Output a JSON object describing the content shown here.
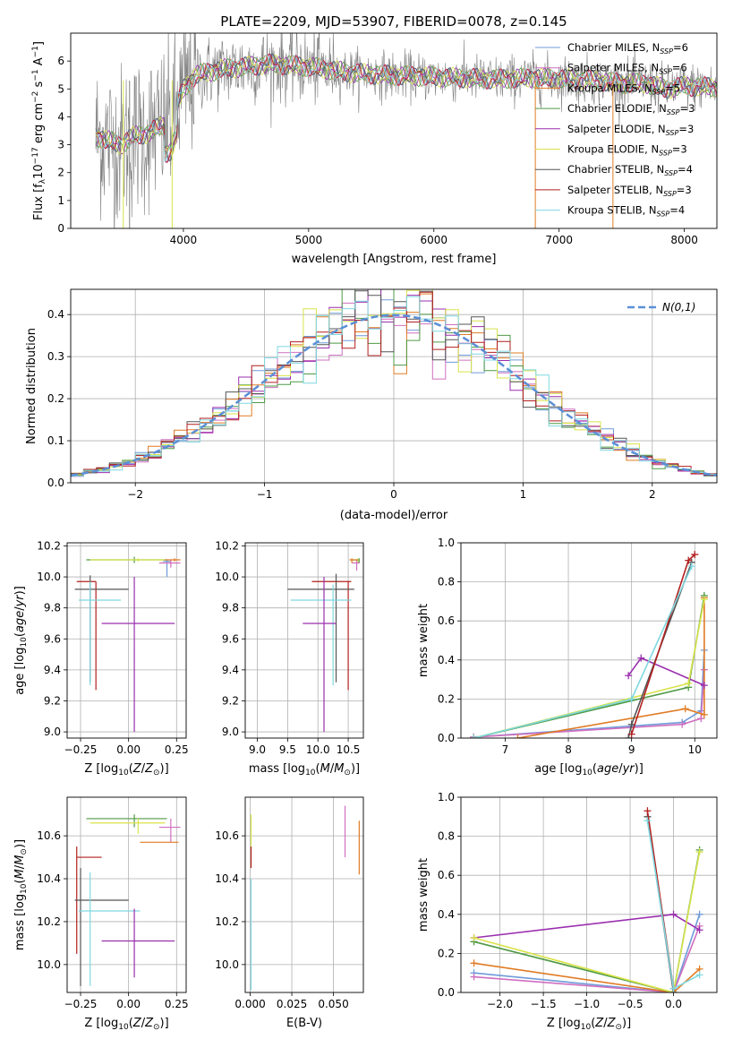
{
  "figure": {
    "title": "PLATE=2209, MJD=53907, FIBERID=0078, z=0.145"
  },
  "colors": {
    "Chabrier MILES": "#6f9bd9",
    "Salpeter MILES": "#cf6fc0",
    "Kroupa MILES": "#e07b24",
    "Chabrier ELODIE": "#4f9a46",
    "Salpeter ELODIE": "#9a2fae",
    "Kroupa ELODIE": "#d8e34a",
    "Chabrier STELIB": "#555555",
    "Salpeter STELIB": "#b31f1f",
    "Kroupa STELIB": "#7fd8e0",
    "data": "#808080",
    "gaussian": "#5b8fd6"
  },
  "chart_data": [
    {
      "id": "spectrum",
      "type": "line",
      "title": "PLATE=2209, MJD=53907, FIBERID=0078, z=0.145",
      "xlabel": "wavelength [Angstrom, rest frame]",
      "ylabel": "Flux [f_λ 10^-17 erg cm^-2 s^-1 A^-1]",
      "xlim": [
        3100,
        8260
      ],
      "ylim": [
        0,
        7
      ],
      "xticks": [
        4000,
        5000,
        6000,
        7000,
        8000
      ],
      "yticks": [
        0,
        1,
        2,
        3,
        4,
        5,
        6
      ],
      "grid": false,
      "legend_placement": "right",
      "legend": [
        {
          "label": "Chabrier MILES, N",
          "sub": "SSP",
          "suffix": "=6"
        },
        {
          "label": "Salpeter MILES, N",
          "sub": "SSP",
          "suffix": "=6"
        },
        {
          "label": "Kroupa MILES, N",
          "sub": "SSP",
          "suffix": "=5"
        },
        {
          "label": "Chabrier ELODIE, N",
          "sub": "SSP",
          "suffix": "=3"
        },
        {
          "label": "Salpeter ELODIE, N",
          "sub": "SSP",
          "suffix": "=3"
        },
        {
          "label": "Kroupa ELODIE, N",
          "sub": "SSP",
          "suffix": "=3"
        },
        {
          "label": "Chabrier STELIB, N",
          "sub": "SSP",
          "suffix": "=4"
        },
        {
          "label": "Salpeter STELIB, N",
          "sub": "SSP",
          "suffix": "=3"
        },
        {
          "label": "Kroupa STELIB, N",
          "sub": "SSP",
          "suffix": "=4"
        }
      ],
      "continuum": {
        "x": [
          3300,
          3500,
          3600,
          3700,
          3800,
          3900,
          3950,
          4000,
          4100,
          4300,
          4500,
          4700,
          5000,
          5300,
          5600,
          5900,
          6200,
          6500,
          6800,
          7100,
          7300,
          7500,
          7700,
          7850,
          8000,
          8260
        ],
        "y": [
          3.3,
          3.0,
          3.3,
          3.4,
          3.6,
          3.8,
          4.4,
          5.0,
          5.5,
          5.7,
          5.8,
          5.9,
          5.8,
          5.6,
          5.5,
          5.45,
          5.4,
          5.35,
          5.4,
          5.35,
          5.3,
          5.2,
          5.2,
          5.0,
          5.1,
          5.05
        ]
      },
      "data_noise_level": 1.2
    },
    {
      "id": "residuals",
      "type": "bar",
      "xlabel": "(data-model)/error",
      "ylabel": "Normed distribution",
      "xlim": [
        -2.5,
        2.5
      ],
      "ylim": [
        0,
        0.46
      ],
      "xticks": [
        -2,
        -1,
        0,
        1,
        2
      ],
      "yticks": [
        0.0,
        0.1,
        0.2,
        0.3,
        0.4
      ],
      "grid": true,
      "legend_placement": "top-right",
      "gaussian_label": "N(0,1)",
      "bin_width": 0.1
    },
    {
      "id": "age-vs-Z",
      "type": "scatter",
      "xlabel": "Z [log10(Z/Z⊙)]",
      "ylabel": "age [log10(age/yr)]",
      "xlim": [
        -0.32,
        0.3
      ],
      "ylim": [
        8.96,
        10.22
      ],
      "xticks": [
        -0.25,
        0.0,
        0.25
      ],
      "yticks": [
        9.0,
        9.2,
        9.4,
        9.6,
        9.8,
        10.0,
        10.2
      ],
      "grid": true,
      "series": [
        {
          "model": "Chabrier ELODIE",
          "x": 0.03,
          "xerr": [
            0.25,
            0.17
          ],
          "y": 10.11,
          "yerr": [
            0.02,
            0.02
          ]
        },
        {
          "model": "Kroupa ELODIE",
          "x": 0.05,
          "xerr": [
            0.25,
            0.14
          ],
          "y": 10.11,
          "yerr": [
            0.01,
            0.01
          ]
        },
        {
          "model": "Chabrier MILES",
          "x": 0.2,
          "xerr": [
            0.02,
            0.02
          ],
          "y": 10.1,
          "yerr": [
            0.1,
            0.01
          ]
        },
        {
          "model": "Salpeter MILES",
          "x": 0.22,
          "xerr": [
            0.06,
            0.05
          ],
          "y": 10.09,
          "yerr": [
            0.03,
            0.02
          ]
        },
        {
          "model": "Kroupa MILES",
          "x": 0.24,
          "xerr": [
            0.05,
            0.03
          ],
          "y": 10.11,
          "yerr": [
            0.01,
            0.01
          ]
        },
        {
          "model": "Salpeter STELIB",
          "x": -0.17,
          "xerr": [
            0.1,
            0.0
          ],
          "y": 9.97,
          "yerr": [
            0.7,
            0.0
          ]
        },
        {
          "model": "Chabrier STELIB",
          "x": -0.2,
          "xerr": [
            0.08,
            0.2
          ],
          "y": 9.92,
          "yerr": [
            0.6,
            0.09
          ]
        },
        {
          "model": "Kroupa STELIB",
          "x": -0.2,
          "xerr": [
            0.06,
            0.16
          ],
          "y": 9.85,
          "yerr": [
            0.55,
            0.12
          ]
        },
        {
          "model": "Salpeter ELODIE",
          "x": 0.03,
          "xerr": [
            0.17,
            0.21
          ],
          "y": 9.7,
          "yerr": [
            0.7,
            0.3
          ]
        }
      ]
    },
    {
      "id": "age-vs-mass",
      "type": "scatter",
      "xlabel": "mass [log10(M/M⊙)]",
      "ylabel": "",
      "xlim": [
        8.8,
        10.75
      ],
      "ylim": [
        8.96,
        10.22
      ],
      "xticks": [
        9.0,
        9.5,
        10.0,
        10.5
      ],
      "yticks": [
        9.0,
        9.2,
        9.4,
        9.6,
        9.8,
        10.0,
        10.2
      ],
      "grid": true,
      "series": [
        {
          "model": "Chabrier ELODIE",
          "x": 10.68,
          "xerr": [
            0.12,
            0.0
          ],
          "y": 10.11,
          "yerr": [
            0.02,
            0.01
          ]
        },
        {
          "model": "Kroupa ELODIE",
          "x": 10.66,
          "xerr": [
            0.12,
            0.0
          ],
          "y": 10.11,
          "yerr": [
            0.02,
            0.01
          ]
        },
        {
          "model": "Salpeter MILES",
          "x": 10.64,
          "xerr": [
            0.08,
            0.05
          ],
          "y": 10.09,
          "yerr": [
            0.05,
            0.02
          ]
        },
        {
          "model": "Kroupa MILES",
          "x": 10.56,
          "xerr": [
            0.04,
            0.1
          ],
          "y": 10.11,
          "yerr": [
            0.02,
            0.01
          ]
        },
        {
          "model": "Salpeter STELIB",
          "x": 10.5,
          "xerr": [
            0.6,
            0.05
          ],
          "y": 9.97,
          "yerr": [
            0.7,
            0.0
          ]
        },
        {
          "model": "Chabrier STELIB",
          "x": 10.3,
          "xerr": [
            0.8,
            0.3
          ],
          "y": 9.92,
          "yerr": [
            0.6,
            0.1
          ]
        },
        {
          "model": "Kroupa STELIB",
          "x": 10.25,
          "xerr": [
            0.7,
            0.3
          ],
          "y": 9.85,
          "yerr": [
            0.55,
            0.1
          ]
        },
        {
          "model": "Salpeter ELODIE",
          "x": 10.1,
          "xerr": [
            0.35,
            0.2
          ],
          "y": 9.7,
          "yerr": [
            0.7,
            0.3
          ]
        }
      ]
    },
    {
      "id": "weight-vs-age",
      "type": "line",
      "xlabel": "age [log10(age/yr)]",
      "ylabel": "mass weight",
      "xlim": [
        6.3,
        10.35
      ],
      "ylim": [
        0,
        1
      ],
      "xticks": [
        7,
        8,
        9,
        10
      ],
      "yticks": [
        0.0,
        0.2,
        0.4,
        0.6,
        0.8,
        1.0
      ],
      "grid": true,
      "series": [
        {
          "model": "Chabrier MILES",
          "x": [
            6.5,
            9.8,
            10.1,
            10.15
          ],
          "y": [
            0.005,
            0.08,
            0.14,
            0.45
          ]
        },
        {
          "model": "Salpeter MILES",
          "x": [
            6.5,
            9.8,
            10.1,
            10.15
          ],
          "y": [
            0.005,
            0.07,
            0.1,
            0.35
          ]
        },
        {
          "model": "Kroupa MILES",
          "x": [
            7.2,
            9.85,
            10.15,
            10.15
          ],
          "y": [
            0.0,
            0.15,
            0.12,
            0.72
          ]
        },
        {
          "model": "Chabrier ELODIE",
          "x": [
            6.5,
            9.9,
            10.15
          ],
          "y": [
            0.0,
            0.26,
            0.73
          ]
        },
        {
          "model": "Salpeter ELODIE",
          "x": [
            8.95,
            9.15,
            10.15
          ],
          "y": [
            0.32,
            0.41,
            0.27
          ]
        },
        {
          "model": "Kroupa ELODIE",
          "x": [
            6.5,
            9.9,
            10.15
          ],
          "y": [
            0.0,
            0.28,
            0.71
          ]
        },
        {
          "model": "Chabrier STELIB",
          "x": [
            8.95,
            9.0,
            9.95
          ],
          "y": [
            0.0,
            0.07,
            0.9
          ]
        },
        {
          "model": "Salpeter STELIB",
          "x": [
            9.0,
            9.9,
            10.0
          ],
          "y": [
            0.02,
            0.91,
            0.94
          ]
        },
        {
          "model": "Kroupa STELIB",
          "x": [
            6.5,
            9.0,
            9.95
          ],
          "y": [
            0.0,
            0.2,
            0.88
          ]
        }
      ]
    },
    {
      "id": "mass-vs-Z",
      "type": "scatter",
      "xlabel": "Z [log10(Z/Z⊙)]",
      "ylabel": "mass [log10(M/M⊙)]",
      "xlim": [
        -0.32,
        0.3
      ],
      "ylim": [
        9.87,
        10.78
      ],
      "xticks": [
        -0.25,
        0.0,
        0.25
      ],
      "yticks": [
        10.0,
        10.2,
        10.4,
        10.6
      ],
      "grid": true,
      "series": [
        {
          "model": "Chabrier ELODIE",
          "x": 0.03,
          "xerr": [
            0.25,
            0.17
          ],
          "y": 10.68,
          "yerr": [
            0.04,
            0.02
          ]
        },
        {
          "model": "Kroupa ELODIE",
          "x": 0.05,
          "xerr": [
            0.25,
            0.14
          ],
          "y": 10.66,
          "yerr": [
            0.05,
            0.02
          ]
        },
        {
          "model": "Salpeter MILES",
          "x": 0.22,
          "xerr": [
            0.06,
            0.05
          ],
          "y": 10.64,
          "yerr": [
            0.07,
            0.04
          ]
        },
        {
          "model": "Kroupa MILES",
          "x": 0.16,
          "xerr": [
            0.1,
            0.1
          ],
          "y": 10.57,
          "yerr": [
            0.0,
            0.0
          ]
        },
        {
          "model": "Salpeter STELIB",
          "x": -0.27,
          "xerr": [
            0.0,
            0.13
          ],
          "y": 10.5,
          "yerr": [
            0.45,
            0.05
          ]
        },
        {
          "model": "Chabrier STELIB",
          "x": -0.25,
          "xerr": [
            0.03,
            0.25
          ],
          "y": 10.3,
          "yerr": [
            0.4,
            0.15
          ]
        },
        {
          "model": "Kroupa STELIB",
          "x": -0.2,
          "xerr": [
            0.06,
            0.26
          ],
          "y": 10.25,
          "yerr": [
            0.35,
            0.18
          ]
        },
        {
          "model": "Salpeter ELODIE",
          "x": 0.03,
          "xerr": [
            0.17,
            0.21
          ],
          "y": 10.11,
          "yerr": [
            0.17,
            0.15
          ]
        }
      ]
    },
    {
      "id": "mass-vs-ebv",
      "type": "scatter",
      "xlabel": "E(B-V)",
      "ylabel": "",
      "xlim": [
        -0.003,
        0.068
      ],
      "ylim": [
        9.87,
        10.78
      ],
      "xticks": [
        0.0,
        0.025,
        0.05
      ],
      "yticks": [
        10.0,
        10.2,
        10.4,
        10.6
      ],
      "grid": true,
      "series": [
        {
          "model": "Kroupa ELODIE",
          "x": 0.0005,
          "y": 10.6,
          "yerr": [
            0.15,
            0.1
          ]
        },
        {
          "model": "Salpeter STELIB",
          "x": 0.0005,
          "y": 10.5,
          "yerr": [
            0.05,
            0.05
          ]
        },
        {
          "model": "Kroupa STELIB",
          "x": 0.0005,
          "y": 10.2,
          "yerr": [
            0.32,
            0.2
          ]
        },
        {
          "model": "Salpeter MILES",
          "x": 0.057,
          "y": 10.62,
          "yerr": [
            0.12,
            0.12
          ]
        },
        {
          "model": "Kroupa MILES",
          "x": 0.0655,
          "y": 10.54,
          "yerr": [
            0.12,
            0.13
          ]
        }
      ]
    },
    {
      "id": "weight-vs-Z",
      "type": "line",
      "xlabel": "Z [log10(Z/Z⊙)]",
      "ylabel": "mass weight",
      "xlim": [
        -2.45,
        0.5
      ],
      "ylim": [
        0,
        1
      ],
      "xticks": [
        -2.0,
        -1.5,
        -1.0,
        -0.5,
        0.0
      ],
      "yticks": [
        0.0,
        0.2,
        0.4,
        0.6,
        0.8,
        1.0
      ],
      "grid": true,
      "series": [
        {
          "model": "Chabrier MILES",
          "x": [
            -2.3,
            0.0,
            0.3
          ],
          "y": [
            0.1,
            0.0,
            0.4
          ]
        },
        {
          "model": "Salpeter MILES",
          "x": [
            -2.3,
            0.0,
            0.3
          ],
          "y": [
            0.08,
            0.0,
            0.34
          ]
        },
        {
          "model": "Kroupa MILES",
          "x": [
            -2.3,
            0.0,
            0.3
          ],
          "y": [
            0.15,
            0.0,
            0.12
          ]
        },
        {
          "model": "Chabrier ELODIE",
          "x": [
            -2.3,
            0.0,
            0.3
          ],
          "y": [
            0.26,
            0.0,
            0.73
          ]
        },
        {
          "model": "Salpeter ELODIE",
          "x": [
            -2.3,
            0.0,
            0.3
          ],
          "y": [
            0.28,
            0.4,
            0.32
          ]
        },
        {
          "model": "Kroupa ELODIE",
          "x": [
            -2.3,
            0.0,
            0.3
          ],
          "y": [
            0.28,
            0.0,
            0.72
          ]
        },
        {
          "model": "Chabrier STELIB",
          "x": [
            -0.3,
            0.0
          ],
          "y": [
            0.9,
            0.0
          ]
        },
        {
          "model": "Salpeter STELIB",
          "x": [
            -0.3,
            0.0
          ],
          "y": [
            0.93,
            0.02
          ]
        },
        {
          "model": "Kroupa STELIB",
          "x": [
            -0.3,
            0.0,
            0.3
          ],
          "y": [
            0.88,
            0.02,
            0.09
          ]
        }
      ]
    }
  ]
}
